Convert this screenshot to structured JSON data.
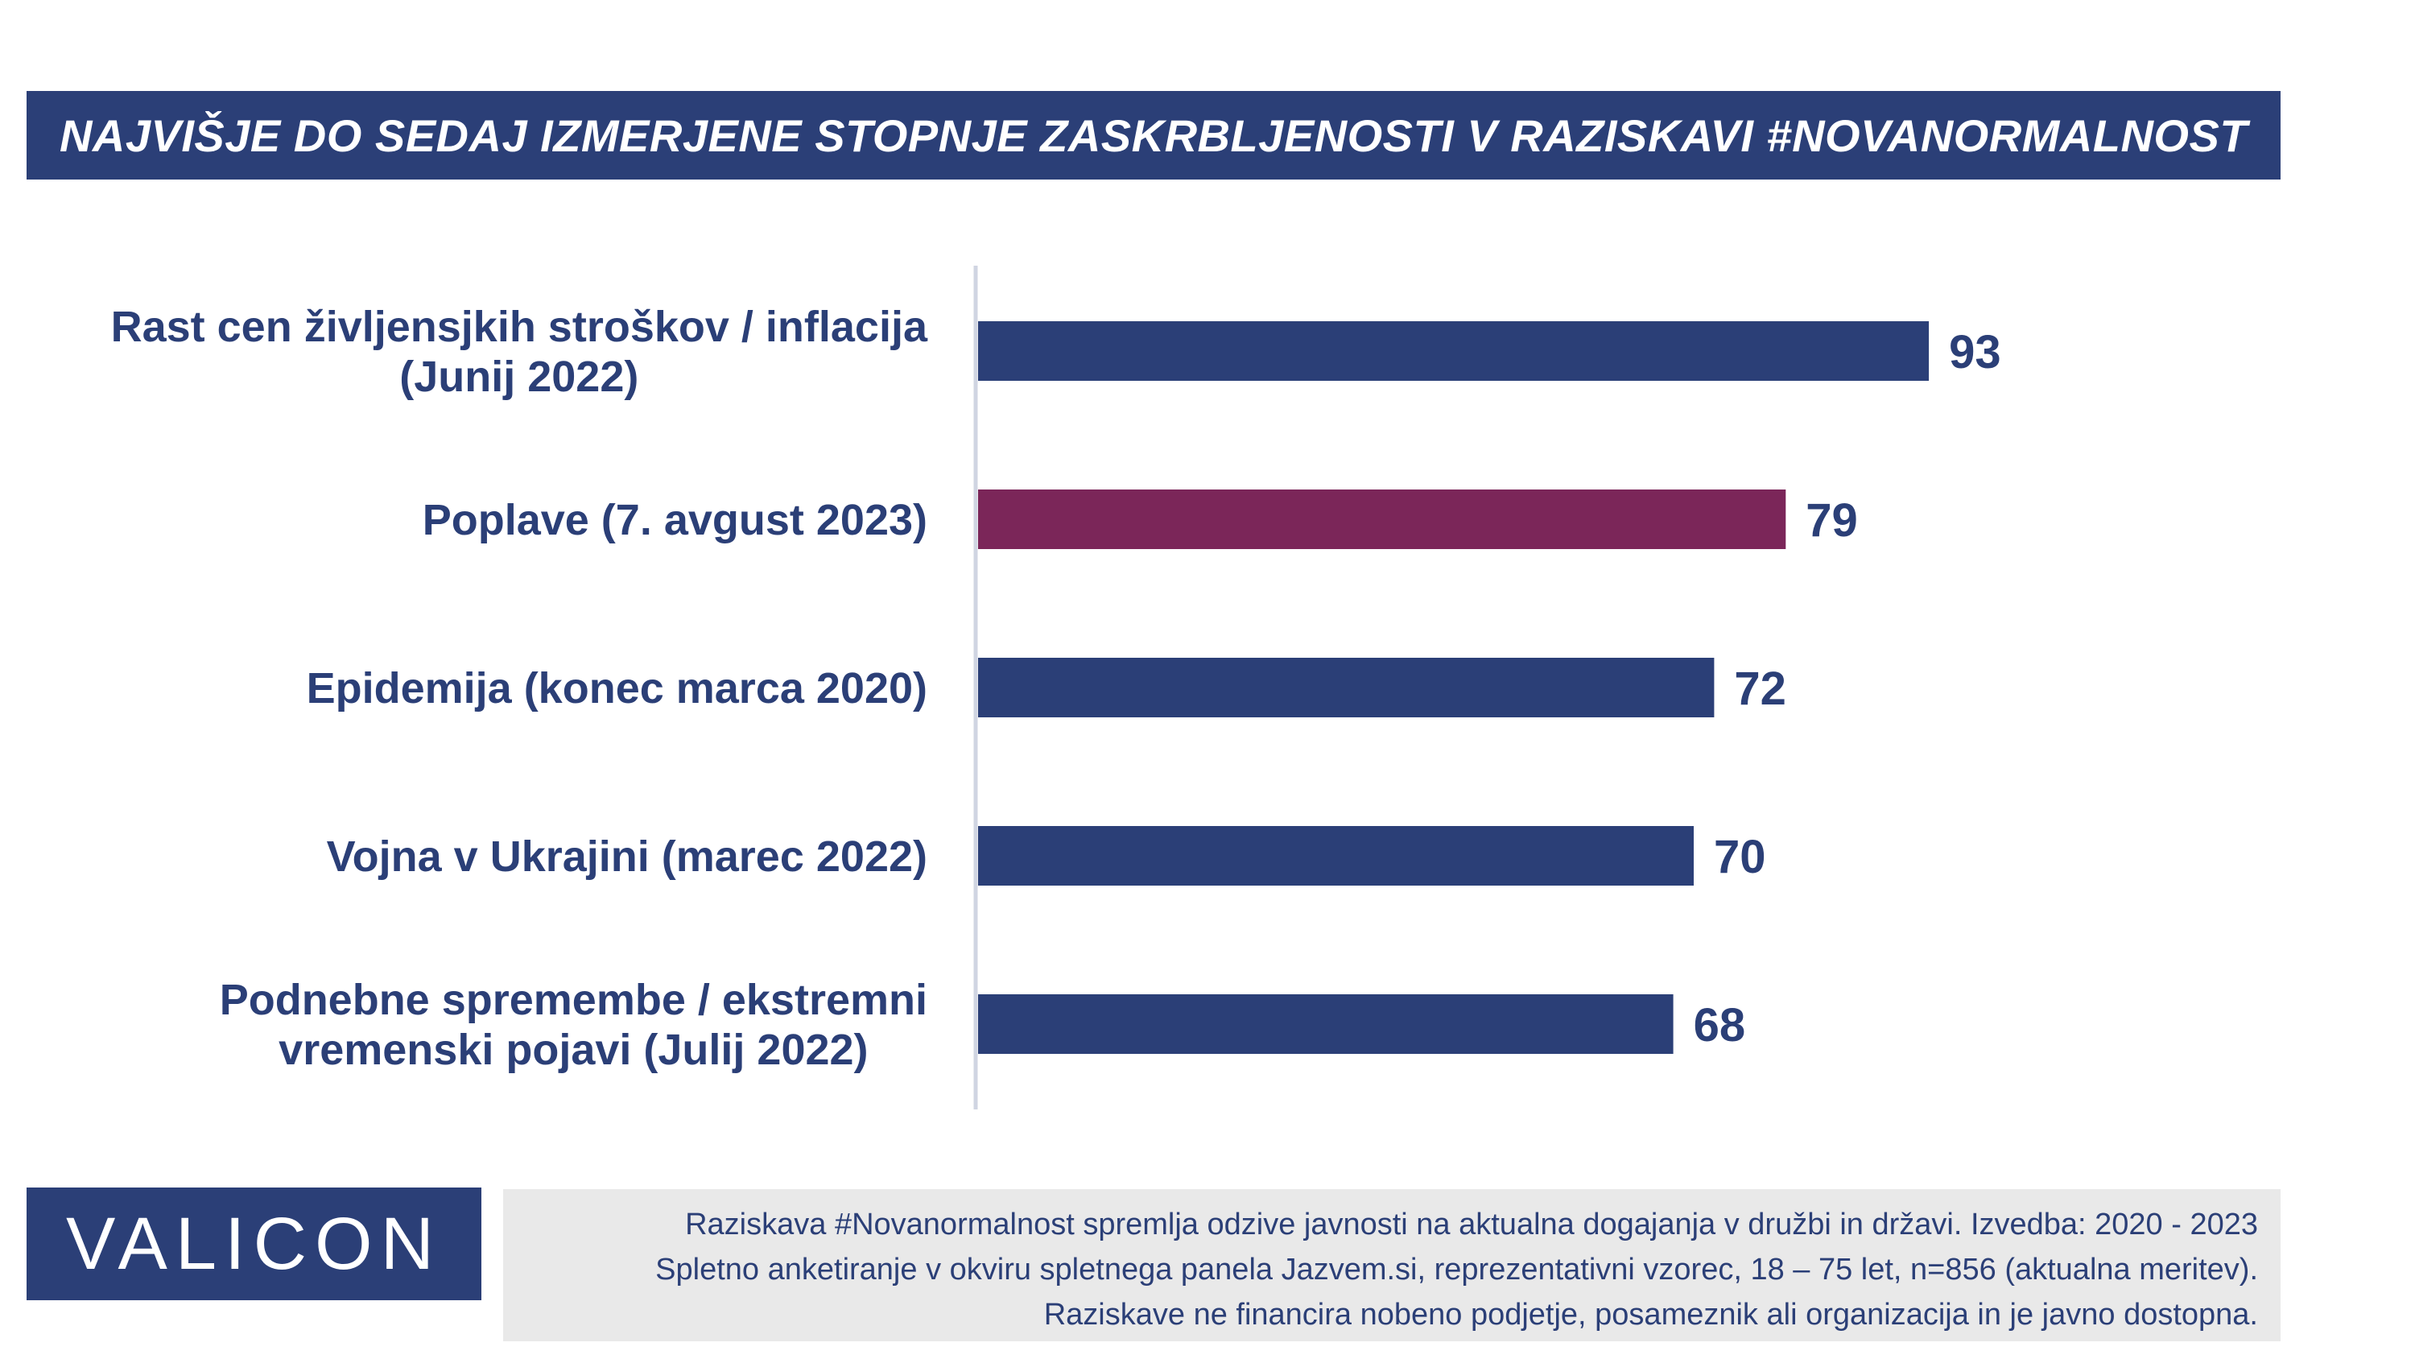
{
  "title": "NAJVIŠJE DO SEDAJ IZMERJENE STOPNJE ZASKRBLJENOSTI V RAZISKAVI #NOVANORMALNOST",
  "chart_data": {
    "type": "bar",
    "orientation": "horizontal",
    "categories": [
      [
        "Rast cen življensjkih stroškov / inflacija",
        "(Junij 2022)"
      ],
      [
        "Poplave (7. avgust 2023)"
      ],
      [
        "Epidemija (konec marca 2020)"
      ],
      [
        "Vojna v Ukrajini (marec 2022)"
      ],
      [
        "Podnebne spremembe / ekstremni",
        "vremenski pojavi (Julij 2022)"
      ]
    ],
    "values": [
      93,
      79,
      72,
      70,
      68
    ],
    "bar_colors": [
      "#2b3f77",
      "#7b2659",
      "#2b3f77",
      "#2b3f77",
      "#2b3f77"
    ],
    "xlim": [
      0,
      100
    ],
    "grid": false,
    "legend": "none"
  },
  "colors": {
    "brand_blue": "#2b3f77",
    "highlight": "#7b2659",
    "footnote_bg": "#e9e9e9"
  },
  "logo": {
    "text": "VALICON"
  },
  "footnote": {
    "lines": [
      "Raziskava #Novanormalnost spremlja odzive javnosti na aktualna dogajanja v družbi in državi. Izvedba: 2020 - 2023",
      "Spletno anketiranje v okviru spletnega panela Jazvem.si, reprezentativni vzorec, 18 – 75 let, n=856 (aktualna meritev).",
      "Raziskave ne financira nobeno podjetje, posameznik ali organizacija in je javno dostopna."
    ]
  }
}
